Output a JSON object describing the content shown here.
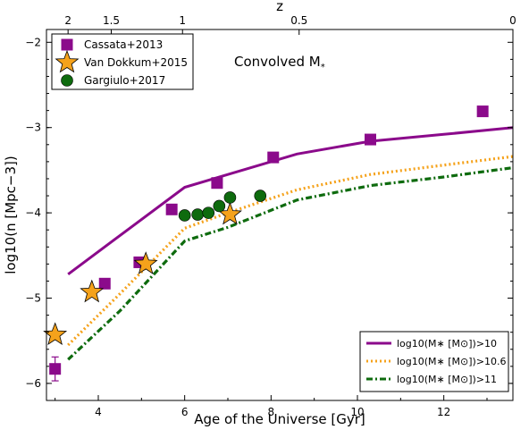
{
  "chart_data": {
    "type": "scatter",
    "annotation": "Convolved M",
    "annotation_sub": "*",
    "xlabel": "Age of the Universe [Gyr]",
    "ylabel": "log10(n [Mpc−3])",
    "xlim": [
      2.8,
      13.6
    ],
    "ylim": [
      -6.2,
      -1.85
    ],
    "x_ticks": [
      4,
      6,
      8,
      10,
      12
    ],
    "y_ticks": [
      -6,
      -5,
      -4,
      -3,
      -2
    ],
    "y_tick_labels": [
      "−6",
      "−5",
      "−4",
      "−3",
      "−2"
    ],
    "top_axis": {
      "label": "z",
      "ticks": [
        {
          "label": "2",
          "age": 3.3
        },
        {
          "label": "1.5",
          "age": 4.3
        },
        {
          "label": "1",
          "age": 5.95
        },
        {
          "label": "0.5",
          "age": 8.65
        },
        {
          "label": "0",
          "age": 13.6
        }
      ]
    },
    "scatter_series": [
      {
        "name": "Cassata+2013",
        "marker": "square",
        "color": "#8b0a8b",
        "points": [
          [
            3.0,
            -5.83
          ],
          [
            4.15,
            -4.83
          ],
          [
            4.95,
            -4.58
          ],
          [
            5.7,
            -3.96
          ],
          [
            6.75,
            -3.65
          ],
          [
            8.05,
            -3.35
          ],
          [
            10.3,
            -3.14
          ],
          [
            12.9,
            -2.81
          ]
        ],
        "yerr": [
          0.14,
          0.03,
          0.05,
          0.02,
          0.02,
          0.02,
          0.05,
          0.02
        ]
      },
      {
        "name": "Van Dokkum+2015",
        "marker": "star",
        "color": "#f5a21b",
        "points": [
          [
            3.0,
            -5.43
          ],
          [
            3.85,
            -4.93
          ],
          [
            5.1,
            -4.6
          ],
          [
            7.05,
            -4.02
          ]
        ]
      },
      {
        "name": "Gargiulo+2017",
        "marker": "circle",
        "color": "#0e6b0e",
        "points": [
          [
            6.0,
            -4.03
          ],
          [
            6.3,
            -4.02
          ],
          [
            6.55,
            -4.0
          ],
          [
            6.8,
            -3.92
          ],
          [
            7.05,
            -3.82
          ],
          [
            7.75,
            -3.8
          ]
        ]
      }
    ],
    "line_series": [
      {
        "label": "log10(M∗ [M⊙])>10",
        "color": "#8b0a8b",
        "dash": "solid",
        "points": [
          [
            3.3,
            -4.72
          ],
          [
            6.0,
            -3.7
          ],
          [
            7.0,
            -3.55
          ],
          [
            8.6,
            -3.31
          ],
          [
            10.3,
            -3.16
          ],
          [
            12.0,
            -3.08
          ],
          [
            13.6,
            -3.0
          ]
        ]
      },
      {
        "label": "log10(M∗ [M⊙])>10.6",
        "color": "#f5a21b",
        "dash": "dotted",
        "points": [
          [
            3.3,
            -5.55
          ],
          [
            4.5,
            -4.95
          ],
          [
            6.0,
            -4.18
          ],
          [
            7.0,
            -4.0
          ],
          [
            8.6,
            -3.73
          ],
          [
            10.3,
            -3.55
          ],
          [
            12.0,
            -3.44
          ],
          [
            13.6,
            -3.34
          ]
        ]
      },
      {
        "label": "log10(M∗ [M⊙])>11",
        "color": "#0e6b0e",
        "dash": "dashdot",
        "points": [
          [
            3.3,
            -5.72
          ],
          [
            4.5,
            -5.15
          ],
          [
            6.0,
            -4.33
          ],
          [
            7.0,
            -4.17
          ],
          [
            8.6,
            -3.85
          ],
          [
            10.3,
            -3.68
          ],
          [
            12.0,
            -3.58
          ],
          [
            13.6,
            -3.47
          ]
        ]
      }
    ],
    "legend_markers_position": "top-left",
    "legend_lines_position": "bottom-right",
    "grid": false
  }
}
